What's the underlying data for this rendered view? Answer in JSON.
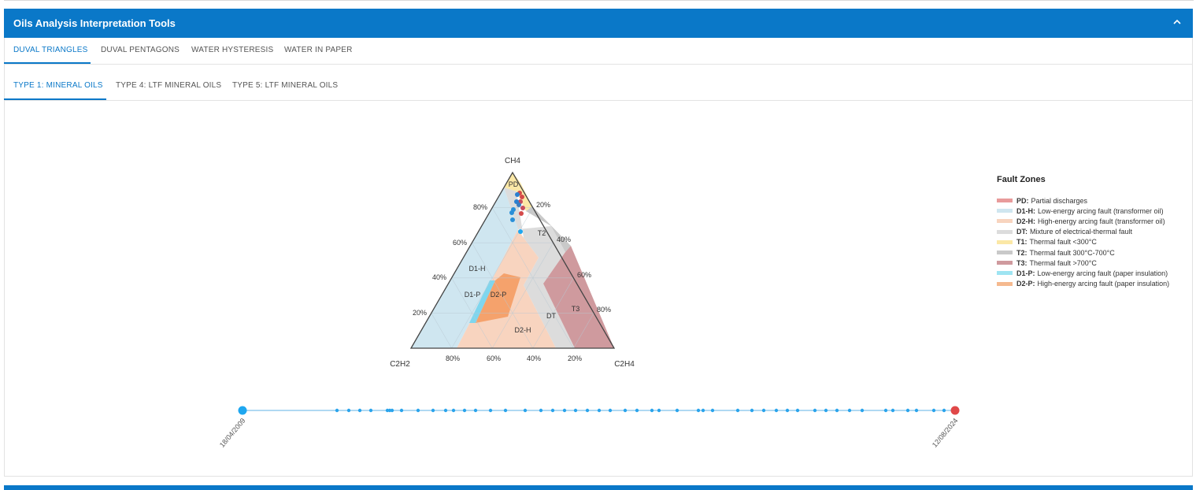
{
  "header": {
    "title": "Oils Analysis Interpretation Tools"
  },
  "tabs": [
    {
      "label": "DUVAL TRIANGLES",
      "active": true
    },
    {
      "label": "DUVAL PENTAGONS",
      "active": false
    },
    {
      "label": "WATER HYSTERESIS",
      "active": false
    },
    {
      "label": "WATER IN PAPER",
      "active": false
    }
  ],
  "subtabs": [
    {
      "label": "TYPE 1: MINERAL OILS",
      "active": true
    },
    {
      "label": "TYPE 4: LTF MINERAL OILS",
      "active": false
    },
    {
      "label": "TYPE 5: LTF MINERAL OILS",
      "active": false
    }
  ],
  "triangle": {
    "vertices": {
      "top": "CH4",
      "left": "C2H2",
      "right": "C2H4"
    },
    "left_ticks": [
      "80%",
      "60%",
      "40%",
      "20%"
    ],
    "right_ticks": [
      "20%",
      "40%",
      "60%",
      "80%"
    ],
    "bottom_ticks": [
      "80%",
      "60%",
      "40%",
      "20%"
    ],
    "zone_labels": [
      "PD",
      "T2",
      "D1-H",
      "D1-P",
      "D2-P",
      "T3",
      "DT",
      "D2-H"
    ]
  },
  "legend": {
    "title": "Fault Zones",
    "items": [
      {
        "code": "PD:",
        "text": "Partial discharges",
        "color": "#e89b9b"
      },
      {
        "code": "D1-H:",
        "text": "Low-energy arcing fault (transformer oil)",
        "color": "#cfe6f0"
      },
      {
        "code": "D2-H:",
        "text": "High-energy arcing fault (transformer oil)",
        "color": "#f8d4bf"
      },
      {
        "code": "DT:",
        "text": "Mixture of electrical-thermal fault",
        "color": "#dcdcdc"
      },
      {
        "code": "T1:",
        "text": "Thermal fault <300°C",
        "color": "#fbe8a6"
      },
      {
        "code": "T2:",
        "text": "Thermal fault 300°C-700°C",
        "color": "#c9c9c9"
      },
      {
        "code": "T3:",
        "text": "Thermal fault >700°C",
        "color": "#cf9a9e"
      },
      {
        "code": "D1-P:",
        "text": "Low-energy arcing fault (paper insulation)",
        "color": "#9ee4f2"
      },
      {
        "code": "D2-P:",
        "text": "High-energy arcing fault (paper insulation)",
        "color": "#f5b98f"
      }
    ]
  },
  "timeline": {
    "start_date": "18/04/2009",
    "end_date": "12/08/2024",
    "start_color": "#1ea7f0",
    "end_color": "#e04848"
  },
  "colors": {
    "accent": "#0a78c8"
  }
}
